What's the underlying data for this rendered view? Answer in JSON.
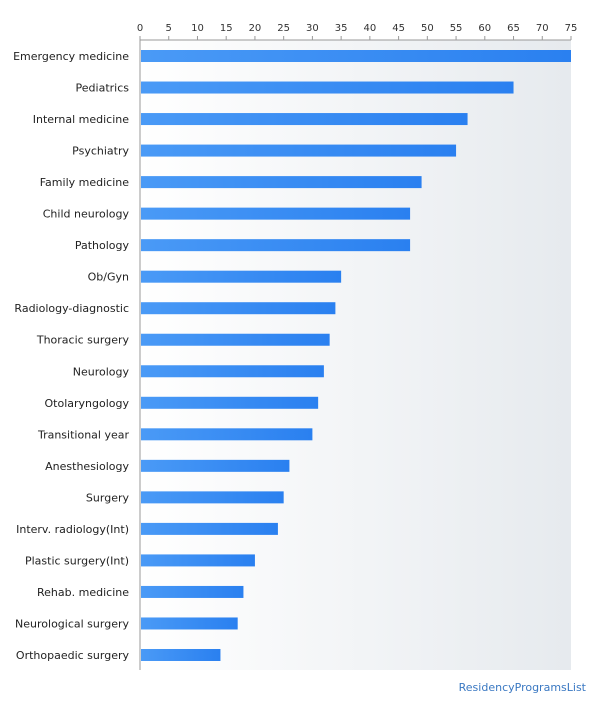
{
  "chart_data": {
    "type": "bar",
    "orientation": "horizontal",
    "title": "",
    "xlabel": "",
    "ylabel": "",
    "xlim": [
      0,
      75
    ],
    "ticks": [
      0,
      5,
      10,
      15,
      20,
      25,
      30,
      35,
      40,
      45,
      50,
      55,
      60,
      65,
      70,
      75
    ],
    "axis_position": "top",
    "grid": false,
    "legend": "none",
    "bar_color": "#2f86f2",
    "categories": [
      "Emergency medicine",
      "Pediatrics",
      "Internal medicine",
      "Psychiatry",
      "Family medicine",
      "Child neurology",
      "Pathology",
      "Ob/Gyn",
      "Radiology-diagnostic",
      "Thoracic surgery",
      "Neurology",
      "Otolaryngology",
      "Transitional year",
      "Anesthesiology",
      "Surgery",
      "Interv. radiology(Int)",
      "Plastic surgery(Int)",
      "Rehab. medicine",
      "Neurological surgery",
      "Orthopaedic surgery"
    ],
    "values": [
      75,
      65,
      57,
      55,
      49,
      47,
      47,
      35,
      34,
      33,
      32,
      31,
      30,
      26,
      25,
      24,
      20,
      18,
      17,
      14
    ]
  },
  "watermark": "ResidencyProgramsList"
}
